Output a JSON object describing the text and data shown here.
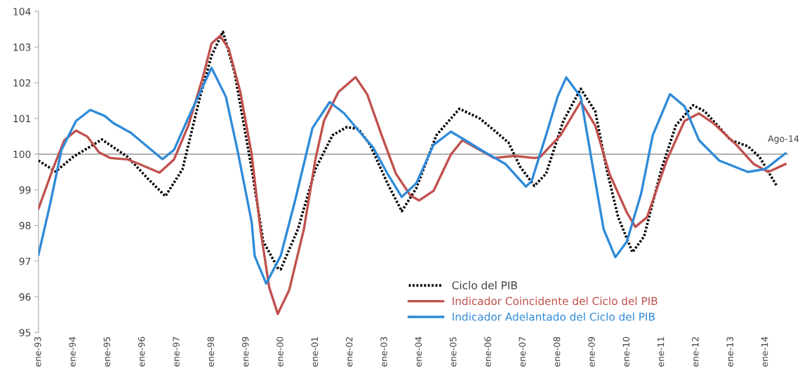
{
  "chart_data": {
    "type": "line",
    "xlim": [
      "1993-01",
      "2014-09"
    ],
    "ylim": [
      95,
      104
    ],
    "yticks": [
      95,
      96,
      97,
      98,
      99,
      100,
      101,
      102,
      103,
      104
    ],
    "xticks": [
      {
        "value": "1993-01",
        "label": "ene-93"
      },
      {
        "value": "1994-01",
        "label": "ene-94"
      },
      {
        "value": "1995-01",
        "label": "ene-95"
      },
      {
        "value": "1996-01",
        "label": "ene-96"
      },
      {
        "value": "1997-01",
        "label": "ene-97"
      },
      {
        "value": "1998-01",
        "label": "ene-98"
      },
      {
        "value": "1999-01",
        "label": "ene-99"
      },
      {
        "value": "2000-01",
        "label": "ene-00"
      },
      {
        "value": "2001-01",
        "label": "ene-01"
      },
      {
        "value": "2002-01",
        "label": "ene-02"
      },
      {
        "value": "2003-01",
        "label": "ene-03"
      },
      {
        "value": "2004-01",
        "label": "ene-04"
      },
      {
        "value": "2005-01",
        "label": "ene-05"
      },
      {
        "value": "2006-01",
        "label": "ene-06"
      },
      {
        "value": "2007-01",
        "label": "ene-07"
      },
      {
        "value": "2008-01",
        "label": "ene-08"
      },
      {
        "value": "2009-01",
        "label": "ene-09"
      },
      {
        "value": "2010-01",
        "label": "ene-10"
      },
      {
        "value": "2011-01",
        "label": "ene-11"
      },
      {
        "value": "2012-01",
        "label": "ene-12"
      },
      {
        "value": "2013-01",
        "label": "ene-13"
      },
      {
        "value": "2014-01",
        "label": "ene-14"
      }
    ],
    "grid": false,
    "legend": "bottom",
    "marker": "none",
    "ref_lines": [
      {
        "axis": "y",
        "value": 100,
        "color": "#a6a6a6"
      }
    ],
    "annotations": [
      {
        "text": "Ago-14",
        "x": "2014-08",
        "y": 100.02
      }
    ],
    "series": [
      {
        "name": "Ciclo del PIB",
        "color": "#000000",
        "line_style": "dotted",
        "x": [
          "1993-01",
          "1993-07",
          "1994-01",
          "1994-11",
          "1995-08",
          "1996-03",
          "1996-09",
          "1997-03",
          "1997-09",
          "1998-01",
          "1998-05",
          "1998-09",
          "1999-03",
          "1999-07",
          "1999-12",
          "2000-01",
          "2000-07",
          "2001-01",
          "2001-07",
          "2001-12",
          "2002-04",
          "2002-08",
          "2003-02",
          "2003-07",
          "2003-12",
          "2004-07",
          "2005-03",
          "2005-10",
          "2006-04",
          "2006-08",
          "2006-12",
          "2007-05",
          "2007-09",
          "2008-03",
          "2008-09",
          "2009-02",
          "2009-06",
          "2009-10",
          "2010-03",
          "2010-07",
          "2011-01",
          "2011-06",
          "2011-12",
          "2012-04",
          "2013-01",
          "2013-07",
          "2013-11",
          "2014-05"
        ],
        "values": [
          99.82,
          99.51,
          99.92,
          100.41,
          99.92,
          99.31,
          98.82,
          99.58,
          101.6,
          102.76,
          103.43,
          102.29,
          99.58,
          97.55,
          96.81,
          96.77,
          97.9,
          99.58,
          100.53,
          100.76,
          100.7,
          100.26,
          99.18,
          98.4,
          99.04,
          100.53,
          101.27,
          101.0,
          100.6,
          100.32,
          99.65,
          99.11,
          99.45,
          100.93,
          101.83,
          101.2,
          99.58,
          98.23,
          97.25,
          97.69,
          99.58,
          100.8,
          101.37,
          101.2,
          100.39,
          100.22,
          99.92,
          99.11
        ]
      },
      {
        "name": "Indicador Coincidente del Ciclo del PIB",
        "color": "#c0504d",
        "line_style": "solid",
        "x": [
          "1993-01",
          "1993-06",
          "1993-10",
          "1994-02",
          "1994-06",
          "1994-10",
          "1995-02",
          "1995-08",
          "1995-12",
          "1996-07",
          "1996-12",
          "1997-05",
          "1997-10",
          "1998-01",
          "1998-04",
          "1998-07",
          "1998-11",
          "1999-03",
          "1999-06",
          "1999-09",
          "1999-12",
          "2000-04",
          "2000-09",
          "2001-01",
          "2001-04",
          "2001-09",
          "2002-03",
          "2002-07",
          "2002-12",
          "2003-05",
          "2003-10",
          "2004-01",
          "2004-06",
          "2004-12",
          "2005-04",
          "2005-10",
          "2006-03",
          "2006-10",
          "2007-05",
          "2007-07",
          "2008-02",
          "2008-09",
          "2009-02",
          "2009-07",
          "2010-01",
          "2010-04",
          "2010-08",
          "2011-03",
          "2011-09",
          "2012-02",
          "2012-07",
          "2013-03",
          "2013-09",
          "2014-02",
          "2014-08"
        ],
        "values": [
          98.47,
          99.58,
          100.39,
          100.66,
          100.49,
          100.05,
          99.89,
          99.85,
          99.72,
          99.48,
          99.85,
          100.8,
          102.15,
          103.1,
          103.31,
          102.96,
          101.74,
          99.99,
          97.89,
          96.27,
          95.52,
          96.2,
          97.89,
          99.85,
          100.93,
          101.74,
          102.16,
          101.68,
          100.53,
          99.45,
          98.84,
          98.7,
          98.97,
          99.99,
          100.39,
          100.12,
          99.89,
          99.95,
          99.89,
          99.92,
          100.53,
          101.47,
          100.8,
          99.45,
          98.36,
          97.96,
          98.23,
          99.85,
          100.93,
          101.14,
          100.87,
          100.26,
          99.72,
          99.5,
          99.72
        ]
      },
      {
        "name": "Indicador Adelantado del Ciclo del PIB",
        "color": "#2f8ad8",
        "line_style": "solid",
        "x": [
          "1993-01",
          "1993-05",
          "1993-09",
          "1994-02",
          "1994-07",
          "1994-12",
          "1995-03",
          "1995-09",
          "1996-02",
          "1996-08",
          "1996-12",
          "1997-06",
          "1998-01",
          "1998-06",
          "1998-10",
          "1999-03",
          "1999-04",
          "1999-08",
          "2000-01",
          "2000-06",
          "2000-12",
          "2001-06",
          "2001-11",
          "2002-04",
          "2002-09",
          "2003-02",
          "2003-07",
          "2003-12",
          "2004-06",
          "2004-12",
          "2005-05",
          "2005-11",
          "2006-07",
          "2007-02",
          "2007-04",
          "2007-09",
          "2008-01",
          "2008-04",
          "2008-09",
          "2009-01",
          "2009-05",
          "2009-09",
          "2010-01",
          "2010-06",
          "2010-10",
          "2011-04",
          "2011-09",
          "2012-02",
          "2012-09",
          "2013-07",
          "2014-01",
          "2014-08"
        ],
        "values": [
          97.18,
          98.57,
          100.12,
          100.93,
          101.24,
          101.07,
          100.87,
          100.6,
          100.26,
          99.86,
          100.12,
          101.2,
          102.42,
          101.61,
          100.12,
          98.09,
          97.15,
          96.37,
          97.15,
          98.7,
          100.73,
          101.46,
          101.14,
          100.66,
          100.19,
          99.45,
          98.8,
          99.18,
          100.26,
          100.63,
          100.39,
          100.09,
          99.72,
          99.09,
          99.24,
          100.53,
          101.61,
          102.15,
          101.61,
          99.72,
          97.89,
          97.11,
          97.55,
          98.9,
          100.53,
          101.68,
          101.34,
          100.39,
          99.82,
          99.5,
          99.58,
          100.02
        ]
      }
    ]
  }
}
